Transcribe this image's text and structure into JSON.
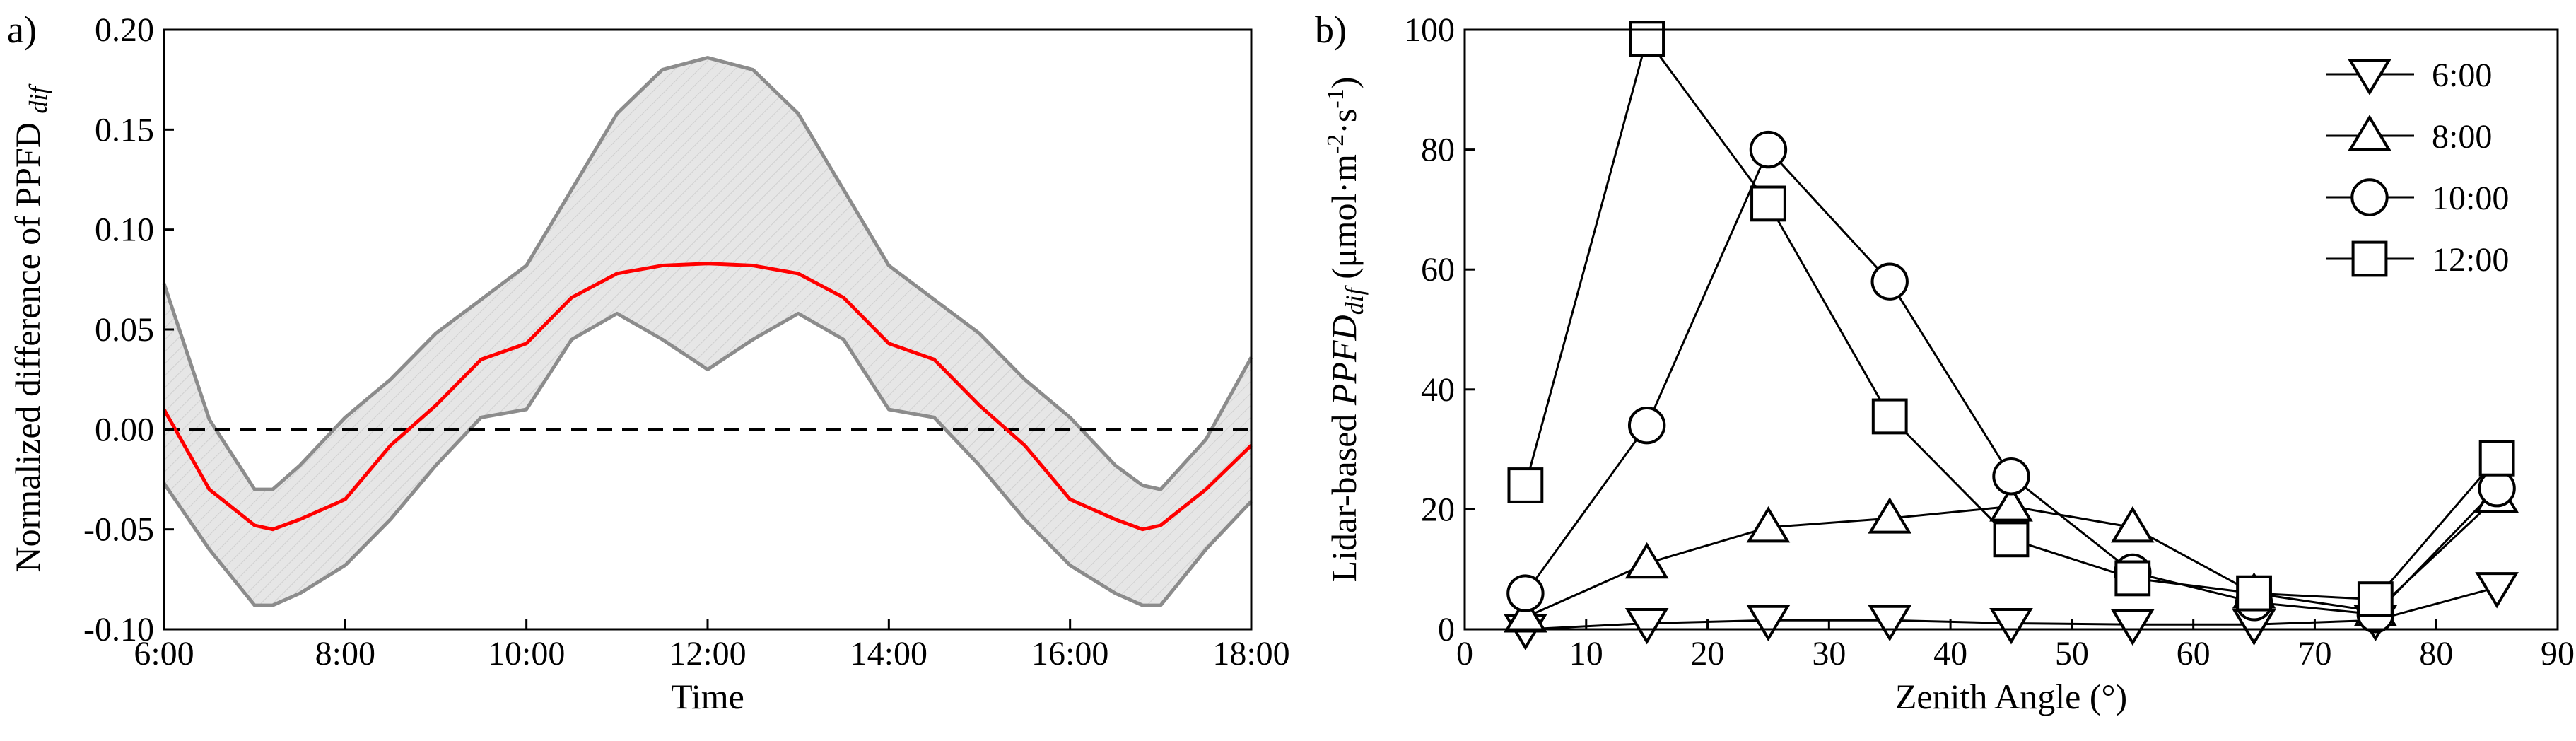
{
  "chart_data": [
    {
      "type": "area",
      "panel_label": "a)",
      "xlabel": "Time",
      "ylabel": "Normalized difference of PPFD",
      "ylabel_sub": "dif",
      "ylim": [
        -0.1,
        0.2
      ],
      "xlim": [
        6,
        18
      ],
      "x_tick_labels": [
        "6:00",
        "8:00",
        "10:00",
        "12:00",
        "14:00",
        "16:00",
        "18:00"
      ],
      "x_tick_values": [
        6,
        8,
        10,
        12,
        14,
        16,
        18
      ],
      "y_tick_labels": [
        "-0.10",
        "-0.05",
        "0.00",
        "0.05",
        "0.10",
        "0.15",
        "0.20"
      ],
      "y_tick_values": [
        -0.1,
        -0.05,
        0,
        0.05,
        0.1,
        0.15,
        0.2
      ],
      "reference_line": 0,
      "colors": {
        "mean": "#ff0000",
        "band_edge": "#8c8c8c",
        "band_fill": "#e6e6e6",
        "ref": "#000000"
      },
      "x": [
        6.0,
        6.5,
        7.0,
        7.2,
        7.5,
        8.0,
        8.5,
        9.0,
        9.5,
        10.0,
        10.5,
        11.0,
        11.5,
        12.0,
        12.5,
        13.0,
        13.5,
        14.0,
        14.5,
        15.0,
        15.5,
        16.0,
        16.5,
        16.8,
        17.0,
        17.5,
        18.0
      ],
      "series": [
        {
          "name": "upper",
          "values": [
            0.073,
            0.005,
            -0.03,
            -0.03,
            -0.018,
            0.006,
            0.025,
            0.048,
            0.065,
            0.082,
            0.12,
            0.158,
            0.18,
            0.186,
            0.18,
            0.158,
            0.12,
            0.082,
            0.065,
            0.048,
            0.025,
            0.006,
            -0.018,
            -0.028,
            -0.03,
            -0.005,
            0.036
          ]
        },
        {
          "name": "mean",
          "values": [
            0.01,
            -0.03,
            -0.048,
            -0.05,
            -0.045,
            -0.035,
            -0.008,
            0.012,
            0.035,
            0.043,
            0.066,
            0.078,
            0.082,
            0.083,
            0.082,
            0.078,
            0.066,
            0.043,
            0.035,
            0.012,
            -0.008,
            -0.035,
            -0.045,
            -0.05,
            -0.048,
            -0.03,
            -0.008
          ]
        },
        {
          "name": "lower",
          "values": [
            -0.027,
            -0.06,
            -0.088,
            -0.088,
            -0.082,
            -0.068,
            -0.045,
            -0.018,
            0.006,
            0.01,
            0.045,
            0.058,
            0.045,
            0.03,
            0.045,
            0.058,
            0.045,
            0.01,
            0.006,
            -0.018,
            -0.045,
            -0.068,
            -0.082,
            -0.088,
            -0.088,
            -0.06,
            -0.036
          ]
        }
      ]
    },
    {
      "type": "line",
      "panel_label": "b)",
      "xlabel": "Zenith Angle (°)",
      "ylabel": "Lidar-based PPFD",
      "ylabel_sub": "dif",
      "ylabel_unit": "(μmol·m",
      "ylabel_unit2": "·s",
      "ylabel_unit3": ")",
      "ylabel_sup1": "-2",
      "ylabel_sup2": "-1",
      "xlim": [
        0,
        90
      ],
      "ylim": [
        0,
        100
      ],
      "x_tick_labels": [
        "0",
        "10",
        "20",
        "30",
        "40",
        "50",
        "60",
        "70",
        "80",
        "90"
      ],
      "x_tick_values": [
        0,
        10,
        20,
        30,
        40,
        50,
        60,
        70,
        80,
        90
      ],
      "y_tick_labels": [
        "0",
        "20",
        "40",
        "60",
        "80",
        "100"
      ],
      "y_tick_values": [
        0,
        20,
        40,
        60,
        80,
        100
      ],
      "x": [
        5,
        15,
        25,
        35,
        45,
        55,
        65,
        75,
        85
      ],
      "legend_position": "top-right",
      "series": [
        {
          "name": "6:00",
          "marker": "triangle-down",
          "values": [
            0,
            1,
            1.5,
            1.5,
            1,
            0.8,
            0.8,
            1.5,
            7
          ]
        },
        {
          "name": "8:00",
          "marker": "triangle-up",
          "values": [
            2,
            11,
            17,
            18.5,
            20.5,
            17,
            6,
            3,
            22
          ]
        },
        {
          "name": "10:00",
          "marker": "circle",
          "values": [
            6,
            34,
            80,
            58,
            25.5,
            9.5,
            4.5,
            2.5,
            23.5
          ]
        },
        {
          "name": "12:00",
          "marker": "square",
          "values": [
            24,
            98.5,
            71,
            35.5,
            15,
            8.5,
            6,
            5,
            28.5
          ]
        }
      ]
    }
  ]
}
